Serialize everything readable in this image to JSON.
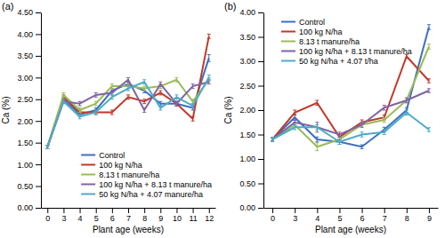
{
  "chart_data": [
    {
      "type": "line",
      "title": "(a)",
      "x_label": "Plant age (weeks)",
      "y_label": "Ca (%)",
      "categories": [
        "0",
        "3",
        "4",
        "5",
        "6",
        "7",
        "8",
        "9",
        "10",
        "11",
        "12"
      ],
      "series": [
        {
          "name": "Control",
          "color": "#3c6fc1",
          "values": [
            1.4,
            2.5,
            2.15,
            2.25,
            2.7,
            2.85,
            2.7,
            2.4,
            2.4,
            2.3,
            3.45
          ],
          "errors": [
            0.04,
            0.05,
            0.05,
            0.05,
            0.05,
            0.05,
            0.05,
            0.05,
            0.05,
            0.05,
            0.08
          ]
        },
        {
          "name": "100 kg N/ha",
          "color": "#c0392b",
          "values": [
            1.4,
            2.55,
            2.2,
            2.2,
            2.2,
            2.55,
            2.45,
            2.65,
            2.4,
            2.05,
            3.95
          ],
          "errors": [
            0.04,
            0.05,
            0.05,
            0.05,
            0.05,
            0.05,
            0.05,
            0.05,
            0.05,
            0.05,
            0.05
          ]
        },
        {
          "name": "8.13 t manure/ha",
          "color": "#9bbb59",
          "values": [
            1.4,
            2.6,
            2.25,
            2.4,
            2.8,
            2.8,
            2.75,
            2.8,
            2.95,
            2.45,
            2.95
          ],
          "errors": [
            0.04,
            0.05,
            0.05,
            0.05,
            0.05,
            0.05,
            0.05,
            0.05,
            0.05,
            0.05,
            0.05
          ]
        },
        {
          "name": "100 kg N/ha + 8.13 t manure/ha",
          "color": "#8064a2",
          "values": [
            1.4,
            2.45,
            2.4,
            2.6,
            2.65,
            2.95,
            2.25,
            2.85,
            2.4,
            2.8,
            2.9
          ],
          "errors": [
            0.04,
            0.05,
            0.05,
            0.05,
            0.05,
            0.05,
            0.05,
            0.05,
            0.05,
            0.05,
            0.05
          ]
        },
        {
          "name": "50 kg N/ha + 4.07 manure/ha",
          "color": "#4bacc6",
          "values": [
            1.4,
            2.45,
            2.1,
            2.2,
            2.55,
            2.75,
            2.9,
            2.3,
            2.55,
            2.35,
            3.0
          ],
          "errors": [
            0.04,
            0.05,
            0.05,
            0.05,
            0.05,
            0.05,
            0.05,
            0.05,
            0.05,
            0.05,
            0.06
          ]
        }
      ],
      "ylim": [
        0,
        4.5
      ],
      "yticks": [
        {
          "value": 0,
          "label": "0.00"
        },
        {
          "value": 0.5,
          "label": "0.50"
        },
        {
          "value": 1,
          "label": "1.00"
        },
        {
          "value": 1.5,
          "label": "1.50"
        },
        {
          "value": 2,
          "label": "2.00"
        },
        {
          "value": 2.5,
          "label": "2.50"
        },
        {
          "value": 3,
          "label": "3.00"
        },
        {
          "value": 3.5,
          "label": "3.50"
        },
        {
          "value": 4,
          "label": "4.00"
        },
        {
          "value": 4.5,
          "label": "4.50"
        }
      ],
      "legend": "bottom-right",
      "grid": false
    },
    {
      "type": "line",
      "title": "(b)",
      "x_label": "Plant age (weeks)",
      "y_label": "Ca (%)",
      "categories": [
        "0",
        "3",
        "4",
        "5",
        "6",
        "7",
        "8",
        "9"
      ],
      "series": [
        {
          "name": "Control",
          "color": "#3c6fc1",
          "values": [
            1.4,
            1.85,
            1.4,
            1.35,
            1.25,
            1.6,
            2.0,
            3.7
          ],
          "errors": [
            0.04,
            0.06,
            0.05,
            0.05,
            0.04,
            0.05,
            0.05,
            0.05
          ]
        },
        {
          "name": "100 kg N/ha",
          "color": "#c0392b",
          "values": [
            1.4,
            1.95,
            2.15,
            1.45,
            1.75,
            1.85,
            3.1,
            2.6
          ],
          "errors": [
            0.04,
            0.05,
            0.05,
            0.05,
            0.05,
            0.05,
            0.04,
            0.04
          ]
        },
        {
          "name": "8.13 t manure/ha",
          "color": "#9bbb59",
          "values": [
            1.4,
            1.7,
            1.25,
            1.4,
            1.7,
            1.8,
            2.2,
            3.3
          ],
          "errors": [
            0.04,
            0.05,
            0.08,
            0.05,
            0.05,
            0.05,
            0.05,
            0.05
          ]
        },
        {
          "name": "100 kg N/ha + 8.13 t manure/ha",
          "color": "#8064a2",
          "values": [
            1.4,
            1.75,
            1.65,
            1.5,
            1.7,
            2.05,
            2.2,
            2.4
          ],
          "errors": [
            0.04,
            0.05,
            0.1,
            0.05,
            0.05,
            0.05,
            0.05,
            0.04
          ]
        },
        {
          "name": "50 kg N/ha + 4.07 t/ha",
          "color": "#4bacc6",
          "values": [
            1.4,
            1.65,
            1.65,
            1.35,
            1.5,
            1.55,
            1.95,
            1.6
          ],
          "errors": [
            0.04,
            0.05,
            0.05,
            0.05,
            0.05,
            0.05,
            0.05,
            0.04
          ]
        }
      ],
      "ylim": [
        0,
        4
      ],
      "yticks": [
        {
          "value": 0,
          "label": "0.00"
        },
        {
          "value": 0.5,
          "label": "0.50"
        },
        {
          "value": 1,
          "label": "1.00"
        },
        {
          "value": 1.5,
          "label": "1.50"
        },
        {
          "value": 2,
          "label": "2.00"
        },
        {
          "value": 2.5,
          "label": "2.50"
        },
        {
          "value": 3,
          "label": "3.00"
        },
        {
          "value": 3.5,
          "label": "3.50"
        },
        {
          "value": 4,
          "label": "4.00"
        }
      ],
      "legend": "top-left",
      "grid": false
    }
  ]
}
